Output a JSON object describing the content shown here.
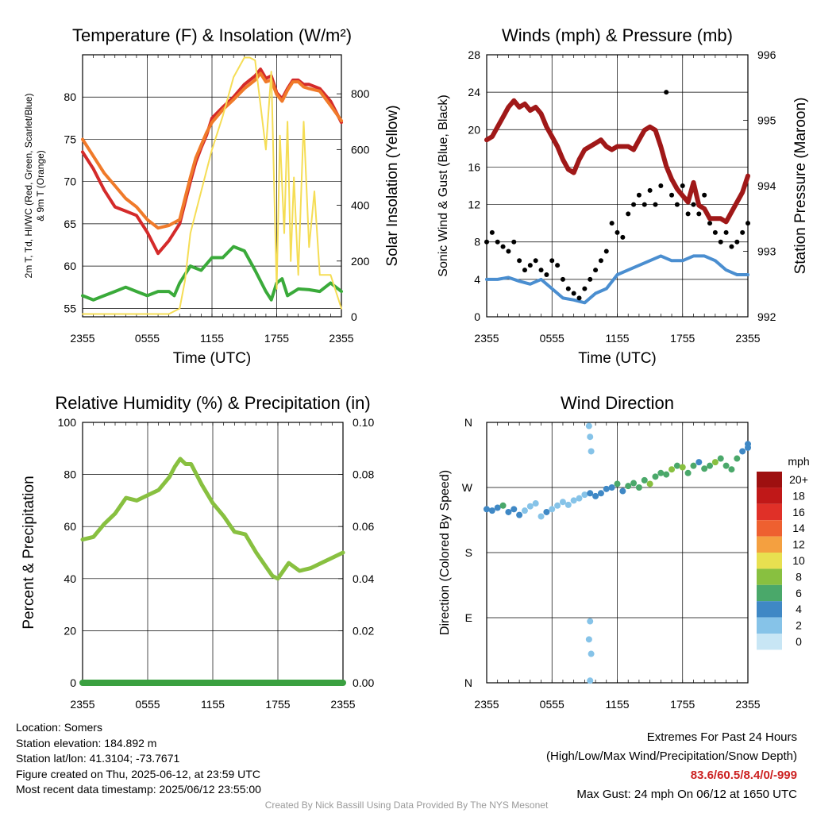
{
  "figure": {
    "location_label": "Location: Somers",
    "elevation_label": "Station elevation: 184.892 m",
    "latlon_label": "Station lat/lon: 41.3104; -73.7671",
    "created_label": "Figure created on Thu, 2025-06-12, at 23:59 UTC",
    "recent_label": "Most recent data timestamp: 2025/06/12 23:55:00",
    "extremes_title": "Extremes For Past 24 Hours",
    "extremes_subtitle": "(High/Low/Max Wind/Precipitation/Snow Depth)",
    "extremes_values": "83.6/60.5/8.4/0/-999",
    "max_gust": "Max Gust: 24 mph On 06/12 at 1650 UTC",
    "credit": "Created By Nick Bassill Using Data Provided By The NYS Mesonet"
  },
  "colors": {
    "red": "#d42a2a",
    "orange": "#f07a2a",
    "green": "#3aaa3a",
    "yellow": "#f5dd55",
    "blue": "#4a8ed0",
    "black": "#000000",
    "maroon": "#a01818",
    "rh": "#88c040",
    "precip": "#3aa040"
  },
  "chart_data": [
    {
      "type": "line",
      "title": "Temperature (F) & Insolation (W/m²)",
      "xlabel": "Time (UTC)",
      "ylabel_left": "2m T, Td, HI/WC (Red, Green, Scarlet/Blue) & 9m T (Orange)",
      "ylabel_right": "Solar Insolation (Yellow)",
      "x_ticks": [
        "2355",
        "0555",
        "1155",
        "1755",
        "2355"
      ],
      "ylim": [
        54,
        85
      ],
      "y_ticks": [
        55,
        60,
        65,
        70,
        75,
        80
      ],
      "ylim_right": [
        0,
        940
      ],
      "y_ticks_right": [
        0,
        200,
        400,
        600,
        800
      ],
      "series": [
        {
          "name": "2m T",
          "color": "red",
          "axis": "left",
          "x": [
            0,
            1,
            2,
            3,
            4,
            5,
            6,
            7,
            8,
            9,
            9.5,
            10,
            10.5,
            11,
            11.5,
            12,
            13,
            14,
            15,
            16,
            16.5,
            17,
            17.5,
            18,
            18.5,
            19,
            19.5,
            20,
            20.5,
            21,
            22,
            23,
            24
          ],
          "y": [
            73.5,
            71.5,
            69,
            67,
            66.5,
            66,
            64,
            61.5,
            63,
            65,
            67.5,
            70,
            72.3,
            74,
            75.5,
            77.5,
            78.8,
            80,
            81.5,
            82.5,
            83.3,
            82.2,
            82.5,
            80.5,
            79.8,
            81,
            82,
            82,
            81.5,
            81.5,
            81,
            79.5,
            77
          ]
        },
        {
          "name": "9m T",
          "color": "orange",
          "axis": "left",
          "x": [
            0,
            1,
            2,
            3,
            4,
            5,
            6,
            7,
            8,
            9,
            9.5,
            10,
            10.5,
            11,
            11.5,
            12,
            13,
            14,
            15,
            16,
            16.5,
            17,
            17.5,
            18,
            18.5,
            19,
            19.5,
            20,
            20.5,
            21,
            22,
            23,
            24
          ],
          "y": [
            75,
            73,
            71,
            69.5,
            68,
            67,
            65.5,
            64.5,
            64.8,
            65.5,
            68,
            70.5,
            72.8,
            74.3,
            75.8,
            77,
            78.5,
            79.7,
            81,
            82,
            82.8,
            81.8,
            82,
            80.3,
            79.5,
            80.8,
            81.8,
            81.8,
            81.2,
            81,
            80.7,
            79,
            77.2
          ]
        },
        {
          "name": "2m Td",
          "color": "green",
          "axis": "left",
          "x": [
            0,
            1,
            2,
            3,
            4,
            5,
            6,
            7,
            8,
            8.5,
            9,
            10,
            11,
            12,
            13,
            14,
            15,
            16,
            17,
            17.5,
            18,
            18.5,
            19,
            20,
            21,
            22,
            23,
            24
          ],
          "y": [
            56.5,
            56,
            56.5,
            57,
            57.5,
            57,
            56.5,
            57,
            57,
            56.5,
            58,
            60,
            59.5,
            61,
            61,
            62.3,
            61.8,
            59.5,
            57,
            56,
            58,
            58.5,
            56.5,
            57.3,
            57.2,
            57,
            58,
            57
          ]
        },
        {
          "name": "Solar Insolation",
          "color": "yellow",
          "axis": "right",
          "x": [
            0,
            1,
            2,
            3,
            4,
            5,
            6,
            7,
            8,
            9,
            9.5,
            10,
            11,
            12,
            13,
            14,
            15,
            15.5,
            16,
            17,
            17.5,
            18,
            18.3,
            18.7,
            19,
            19.3,
            19.6,
            20,
            20.5,
            21,
            21.5,
            22,
            23,
            24
          ],
          "y": [
            10,
            10,
            10,
            10,
            10,
            10,
            10,
            10,
            10,
            30,
            130,
            300,
            450,
            600,
            720,
            860,
            930,
            930,
            920,
            600,
            880,
            100,
            650,
            300,
            700,
            200,
            500,
            150,
            700,
            250,
            450,
            150,
            150,
            30
          ]
        }
      ]
    },
    {
      "type": "line",
      "title": "Winds (mph) & Pressure (mb)",
      "xlabel": "Time (UTC)",
      "ylabel_left": "Sonic Wind & Gust (Blue, Black)",
      "ylabel_right": "Station Pressure (Maroon)",
      "x_ticks": [
        "2355",
        "0555",
        "1155",
        "1755",
        "2355"
      ],
      "ylim": [
        0,
        28
      ],
      "y_ticks": [
        0,
        4,
        8,
        12,
        16,
        20,
        24,
        28
      ],
      "ylim_right": [
        992,
        996
      ],
      "y_ticks_right": [
        992,
        993,
        994,
        995,
        996
      ],
      "series": [
        {
          "name": "Sonic Wind",
          "color": "blue",
          "axis": "left",
          "x": [
            0,
            1,
            2,
            3,
            4,
            5,
            6,
            7,
            8,
            9,
            10,
            11,
            12,
            13,
            14,
            15,
            16,
            17,
            18,
            19,
            20,
            21,
            22,
            23,
            24
          ],
          "y": [
            4,
            4,
            4.2,
            3.8,
            3.5,
            4,
            3,
            2,
            1.8,
            1.5,
            2.5,
            3,
            4.5,
            5,
            5.5,
            6,
            6.5,
            6,
            6,
            6.5,
            6.5,
            6,
            5,
            4.5,
            4.5
          ]
        },
        {
          "name": "Gust",
          "color": "black",
          "axis": "left",
          "style": "dots",
          "x": [
            0,
            0.5,
            1,
            1.5,
            2,
            2.5,
            3,
            3.5,
            4,
            4.5,
            5,
            5.5,
            6,
            6.5,
            7,
            7.5,
            8,
            8.5,
            9,
            9.5,
            10,
            10.5,
            11,
            11.5,
            12,
            12.5,
            13,
            13.5,
            14,
            14.5,
            15,
            15.5,
            16,
            16.5,
            17,
            17.5,
            18,
            18.5,
            19,
            19.5,
            20,
            20.5,
            21,
            21.5,
            22,
            22.5,
            23,
            23.5,
            24
          ],
          "y": [
            8,
            9,
            8,
            7.5,
            7,
            8,
            6,
            5,
            5.5,
            6,
            5,
            4.5,
            6,
            5.5,
            4,
            3,
            2.5,
            2,
            3,
            4,
            5,
            6,
            7,
            10,
            9,
            8.5,
            11,
            12,
            13,
            12,
            13.5,
            12,
            14,
            24,
            13,
            12,
            14,
            11,
            12,
            11,
            13,
            10,
            9,
            8,
            9,
            7.5,
            8,
            9,
            10
          ]
        },
        {
          "name": "Station Pressure",
          "color": "maroon",
          "axis": "right",
          "x": [
            0,
            0.5,
            1,
            1.5,
            2,
            2.5,
            3,
            3.5,
            4,
            4.5,
            5,
            5.5,
            6,
            6.5,
            7,
            7.5,
            8,
            8.5,
            9,
            9.5,
            10,
            10.5,
            11,
            11.5,
            12,
            12.5,
            13,
            13.5,
            14,
            14.5,
            15,
            15.5,
            16,
            16.5,
            17,
            17.5,
            18,
            18.5,
            19,
            19.5,
            20,
            20.5,
            21,
            21.5,
            22,
            22.5,
            23,
            23.5,
            24
          ],
          "y": [
            994.7,
            994.75,
            994.9,
            995.05,
            995.2,
            995.3,
            995.2,
            995.25,
            995.15,
            995.2,
            995.1,
            994.9,
            994.75,
            994.6,
            994.4,
            994.25,
            994.2,
            994.4,
            994.55,
            994.6,
            994.65,
            994.7,
            994.6,
            994.55,
            994.6,
            994.6,
            994.6,
            994.55,
            994.7,
            994.85,
            994.9,
            994.85,
            994.6,
            994.3,
            994.1,
            993.95,
            993.85,
            993.75,
            994.05,
            993.7,
            993.65,
            993.5,
            993.5,
            993.5,
            993.45,
            993.6,
            993.75,
            993.9,
            994.15
          ]
        }
      ]
    },
    {
      "type": "line",
      "title": "Relative Humidity (%) & Precipitation (in)",
      "xlabel": "",
      "ylabel_left": "Percent & Precipitation",
      "x_ticks": [
        "2355",
        "0555",
        "1155",
        "1755",
        "2355"
      ],
      "ylim": [
        0,
        100
      ],
      "y_ticks": [
        0,
        20,
        40,
        60,
        80,
        100
      ],
      "ylim_right": [
        0,
        0.1
      ],
      "y_ticks_right": [
        "0.00",
        "0.02",
        "0.04",
        "0.06",
        "0.08",
        "0.10"
      ],
      "series": [
        {
          "name": "Relative Humidity",
          "color": "rh",
          "axis": "left",
          "x": [
            0,
            1,
            2,
            3,
            4,
            5,
            6,
            7,
            8,
            8.5,
            9,
            9.5,
            10,
            11,
            12,
            13,
            14,
            15,
            16,
            17,
            17.5,
            18,
            19,
            20,
            21,
            22,
            23,
            24
          ],
          "y": [
            55,
            56,
            61,
            65,
            71,
            70,
            72,
            74,
            79,
            83,
            86,
            84,
            84,
            76,
            69,
            64,
            58,
            57,
            50,
            44,
            41,
            40,
            46,
            43,
            44,
            46,
            48,
            50
          ]
        },
        {
          "name": "Precipitation",
          "color": "precip",
          "axis": "right",
          "x": [
            0,
            24
          ],
          "y": [
            0,
            0
          ]
        }
      ]
    },
    {
      "type": "scatter",
      "title": "Wind Direction",
      "xlabel": "",
      "ylabel_left": "Direction (Colored By Speed)",
      "x_ticks": [
        "2355",
        "0555",
        "1155",
        "1755",
        "2355"
      ],
      "y_ticks": [
        "N",
        "E",
        "S",
        "W",
        "N"
      ],
      "ylim": [
        0,
        360
      ],
      "colorbar": {
        "title": "mph",
        "labels": [
          "0",
          "2",
          "4",
          "6",
          "8",
          "10",
          "12",
          "14",
          "16",
          "18",
          "20+"
        ],
        "colors": [
          "#c8e6f5",
          "#86c3e8",
          "#3f88c5",
          "#4aa86a",
          "#88c040",
          "#e8e050",
          "#f4a040",
          "#ee6030",
          "#e03028",
          "#c01818",
          "#9e1010"
        ]
      },
      "points_dir": [
        240,
        238,
        242,
        245,
        236,
        240,
        232,
        238,
        244,
        248,
        230,
        236,
        240,
        245,
        250,
        246,
        252,
        255,
        260,
        262,
        258,
        262,
        268,
        270,
        275,
        265,
        272,
        276,
        270,
        280,
        275,
        285,
        290,
        288,
        295,
        300,
        298,
        290,
        300,
        305,
        296,
        300,
        305,
        310,
        300,
        295,
        310,
        320,
        325,
        330
      ],
      "points_speed": [
        3,
        3,
        4,
        5,
        3,
        4,
        3,
        2,
        2,
        2,
        2,
        3,
        2,
        2,
        1,
        2,
        1,
        2,
        2,
        3,
        4,
        4,
        3,
        4,
        5,
        4,
        6,
        5,
        6,
        5,
        7,
        6,
        5,
        6,
        7,
        6,
        7,
        6,
        5,
        4,
        5,
        6,
        7,
        6,
        5,
        5,
        6,
        4,
        4,
        4
      ],
      "points_x": [
        0,
        0.5,
        1,
        1.5,
        2,
        2.5,
        3,
        3.5,
        4,
        4.5,
        5,
        5.5,
        6,
        6.5,
        7,
        7.5,
        8,
        8.5,
        9,
        9.5,
        10,
        10.5,
        11,
        11.5,
        12,
        12.5,
        13,
        13.5,
        14,
        14.5,
        15,
        15.5,
        16,
        16.5,
        17,
        17.5,
        18,
        18.5,
        19,
        19.5,
        20,
        20.5,
        21,
        21.5,
        22,
        22.5,
        23,
        23.5,
        24,
        24
      ],
      "outliers_x": [
        9.4,
        9.5,
        9.6,
        9.5,
        9.4,
        9.6,
        9.5
      ],
      "outliers_dir": [
        355,
        340,
        320,
        85,
        60,
        40,
        3
      ],
      "outliers_speed": [
        1,
        1,
        1,
        2,
        1,
        1,
        1
      ]
    }
  ]
}
